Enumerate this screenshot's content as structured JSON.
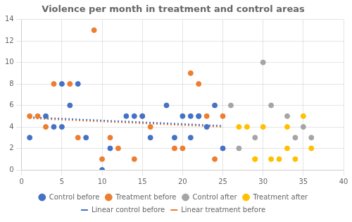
{
  "chart_data": {
    "type": "scatter",
    "title": "Violence per month in treatment and control areas",
    "xlim": [
      0,
      40
    ],
    "ylim": [
      0,
      14
    ],
    "xticks": [
      0,
      5,
      10,
      15,
      20,
      25,
      30,
      35,
      40
    ],
    "yticks": [
      0,
      2,
      4,
      6,
      8,
      10,
      12,
      14
    ],
    "grid": true,
    "legend": "bottom",
    "series": [
      {
        "name": "Control before",
        "type": "scatter",
        "marker": "circle",
        "color": "#4472C4",
        "x": [
          1,
          3,
          4,
          5,
          5,
          6,
          7,
          8,
          10,
          11,
          13,
          14,
          15,
          16,
          18,
          19,
          20,
          21,
          21,
          22,
          22,
          23,
          24,
          25
        ],
        "values": [
          3,
          5,
          4,
          8,
          4,
          6,
          8,
          3,
          0,
          2,
          5,
          5,
          5,
          3,
          6,
          3,
          5,
          5,
          3,
          5,
          5,
          4,
          6,
          2
        ]
      },
      {
        "name": "Treatment before",
        "type": "scatter",
        "marker": "circle",
        "color": "#ED7D31",
        "x": [
          1,
          2,
          3,
          4,
          6,
          7,
          9,
          10,
          11,
          12,
          14,
          15,
          16,
          19,
          20,
          21,
          22,
          23,
          24,
          25
        ],
        "values": [
          5,
          5,
          4,
          8,
          8,
          3,
          13,
          1,
          3,
          2,
          1,
          5,
          4,
          2,
          2,
          9,
          8,
          5,
          1,
          5
        ]
      },
      {
        "name": "Control after",
        "type": "scatter",
        "marker": "circle",
        "color": "#A5A5A5",
        "x": [
          26,
          27,
          29,
          30,
          31,
          33,
          34,
          35,
          36
        ],
        "values": [
          6,
          2,
          3,
          10,
          6,
          5,
          3,
          4,
          3
        ]
      },
      {
        "name": "Treatment after",
        "type": "scatter",
        "marker": "circle",
        "color": "#FFC000",
        "x": [
          27,
          28,
          29,
          29,
          30,
          31,
          32,
          33,
          33,
          34,
          35,
          36
        ],
        "values": [
          4,
          4,
          1,
          1,
          4,
          1,
          1,
          4,
          2,
          1,
          5,
          2
        ]
      },
      {
        "name": "Linear control before",
        "type": "line",
        "line_style": "dotted",
        "color": "#4472C4",
        "x": [
          1,
          25
        ],
        "values": [
          4.9,
          4.1
        ]
      },
      {
        "name": "Linear treatment before",
        "type": "line",
        "line_style": "dotted",
        "color": "#ED7D31",
        "x": [
          1,
          25
        ],
        "values": [
          4.8,
          4.0
        ]
      }
    ]
  }
}
